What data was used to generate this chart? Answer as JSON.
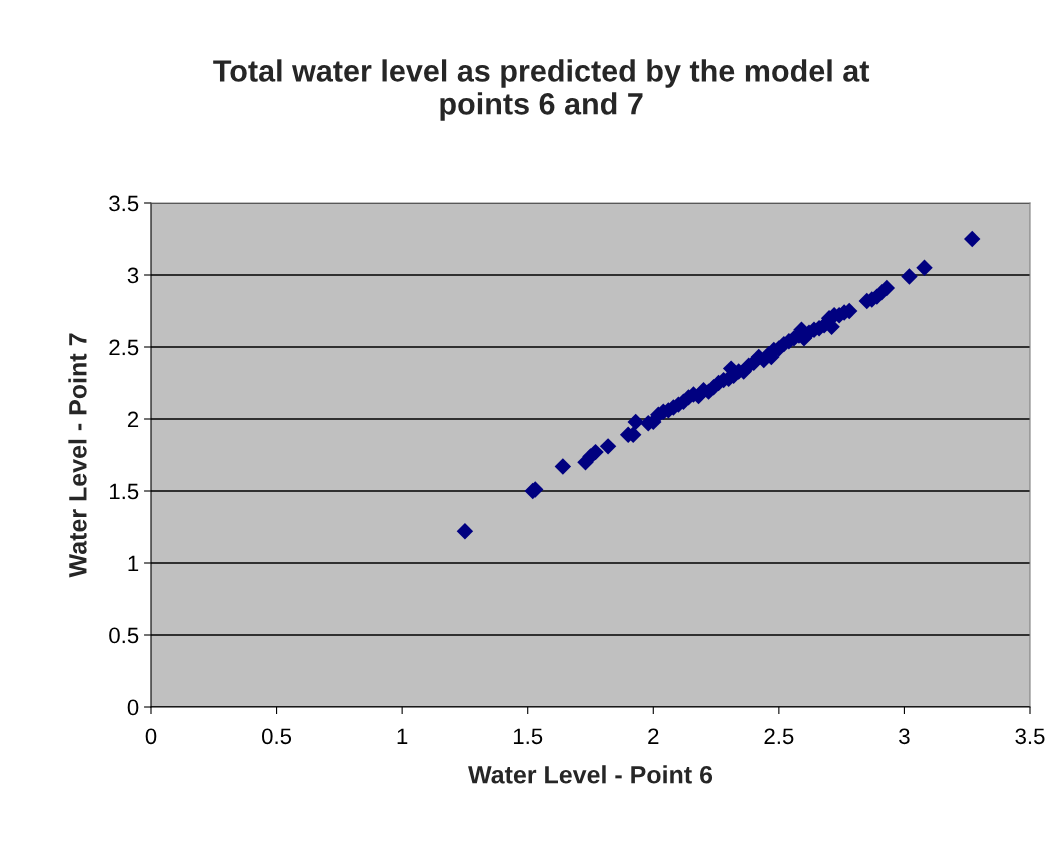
{
  "chart_data": {
    "type": "scatter",
    "title": "Total water level as predicted by the model at\npoints 6 and 7",
    "xlabel": "Water Level - Point 6",
    "ylabel": "Water Level - Point 7",
    "xlim": [
      0,
      3.5
    ],
    "ylim": [
      0,
      3.5
    ],
    "xticks": [
      0,
      0.5,
      1,
      1.5,
      2,
      2.5,
      3,
      3.5
    ],
    "yticks": [
      0,
      0.5,
      1,
      1.5,
      2,
      2.5,
      3,
      3.5
    ],
    "grid": "y",
    "marker": "diamond",
    "legend": false,
    "series": [
      {
        "color": "#000080",
        "x": [
          1.25,
          1.52,
          1.53,
          1.64,
          1.73,
          1.75,
          1.77,
          1.82,
          1.9,
          1.92,
          1.93,
          1.98,
          2.0,
          2.02,
          2.04,
          2.06,
          2.08,
          2.1,
          2.12,
          2.14,
          2.16,
          2.18,
          2.2,
          2.22,
          2.24,
          2.26,
          2.28,
          2.3,
          2.31,
          2.32,
          2.34,
          2.36,
          2.38,
          2.4,
          2.42,
          2.44,
          2.46,
          2.47,
          2.48,
          2.5,
          2.52,
          2.54,
          2.56,
          2.58,
          2.59,
          2.6,
          2.62,
          2.64,
          2.66,
          2.68,
          2.7,
          2.71,
          2.72,
          2.74,
          2.76,
          2.78,
          2.85,
          2.87,
          2.89,
          2.91,
          2.93,
          3.02,
          3.08,
          3.27
        ],
        "values": [
          1.22,
          1.5,
          1.51,
          1.67,
          1.7,
          1.74,
          1.77,
          1.81,
          1.89,
          1.89,
          1.98,
          1.97,
          1.98,
          2.03,
          2.05,
          2.06,
          2.08,
          2.1,
          2.12,
          2.15,
          2.17,
          2.16,
          2.2,
          2.19,
          2.22,
          2.25,
          2.27,
          2.28,
          2.35,
          2.3,
          2.33,
          2.33,
          2.37,
          2.39,
          2.43,
          2.41,
          2.45,
          2.43,
          2.48,
          2.49,
          2.52,
          2.54,
          2.56,
          2.58,
          2.62,
          2.56,
          2.6,
          2.62,
          2.63,
          2.65,
          2.7,
          2.64,
          2.72,
          2.72,
          2.74,
          2.75,
          2.82,
          2.83,
          2.85,
          2.88,
          2.91,
          2.99,
          3.05,
          3.25
        ]
      }
    ]
  }
}
